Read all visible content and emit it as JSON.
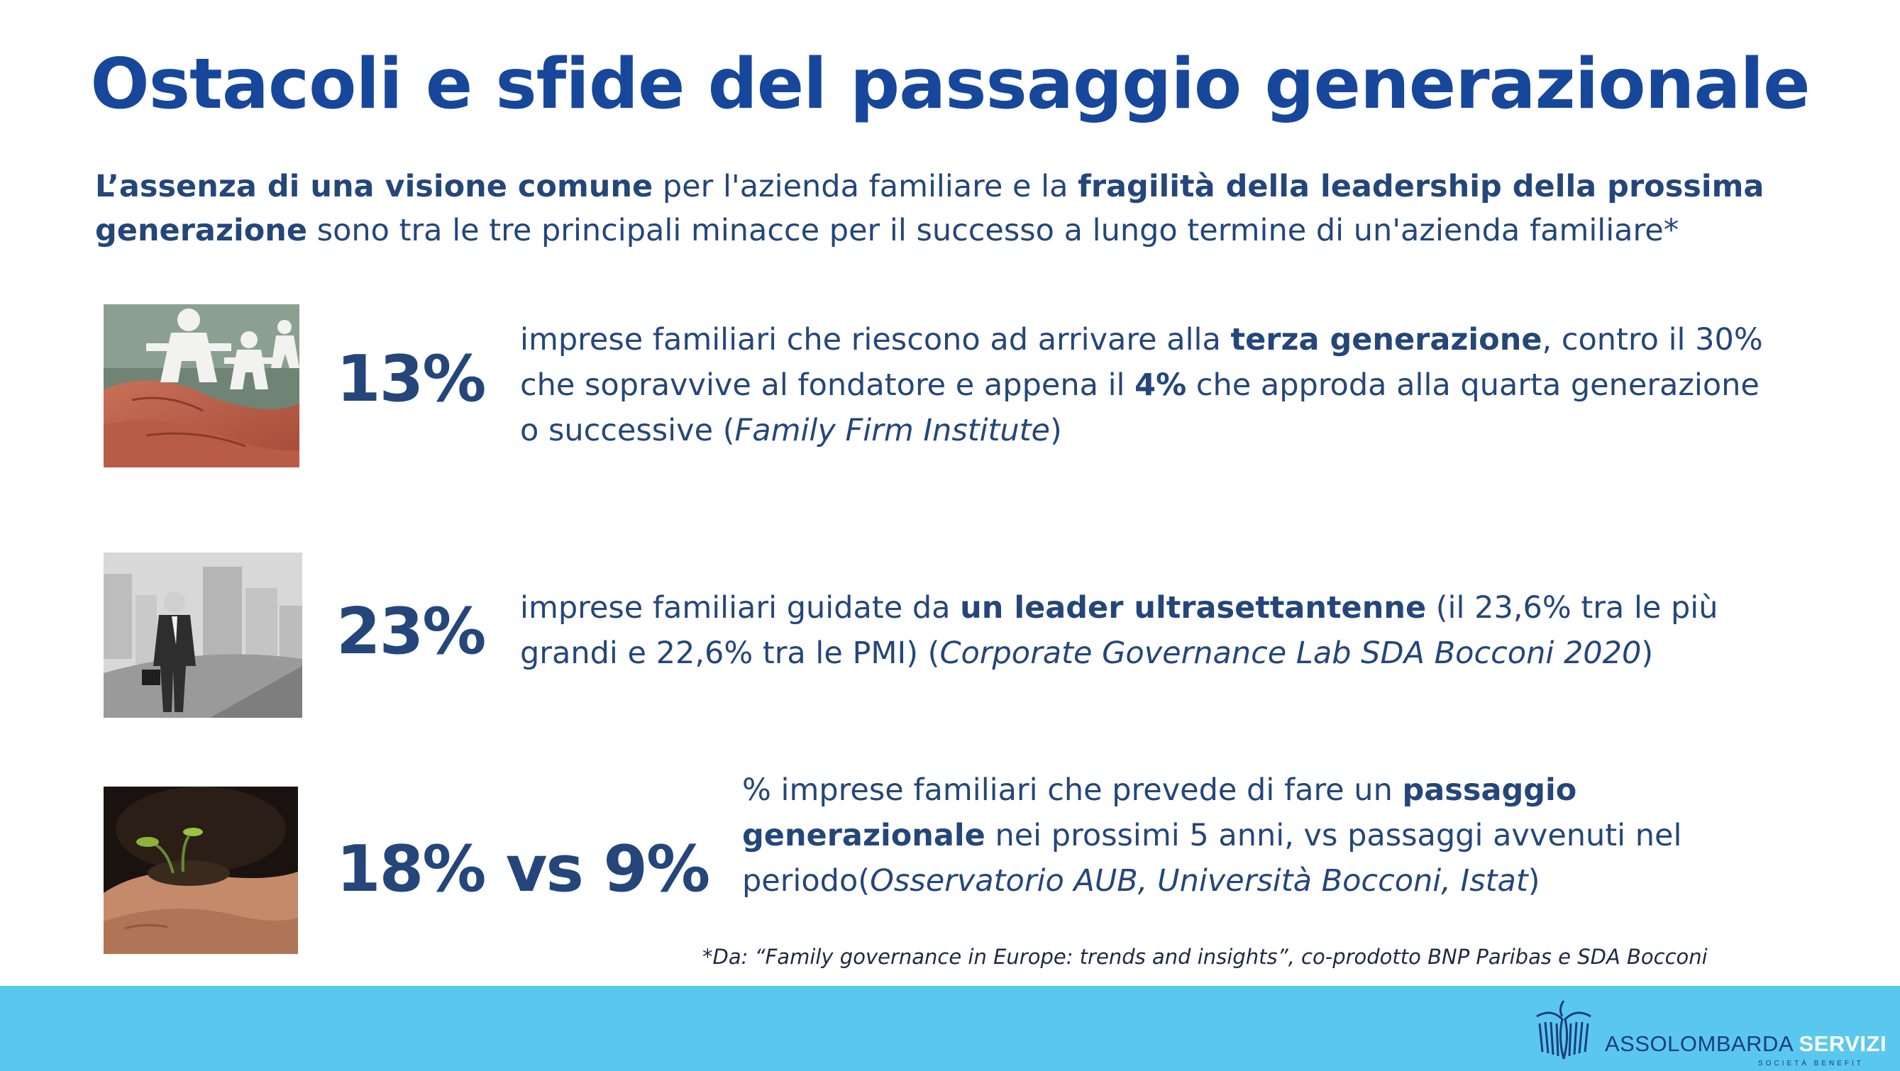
{
  "title": "Ostacoli e sfide del passaggio generazionale",
  "intro": {
    "p1_bold": "L’assenza di una visione comune",
    "p2": " per l'azienda familiare e la ",
    "p3_bold": "fragilità della leadership della prossima generazione",
    "p4": " sono tra le tre principali minacce per il successo a lungo termine di un'azienda familiare*"
  },
  "stats": [
    {
      "value": "13%",
      "image": "paper-family-in-hands-photo",
      "t1": "imprese familiari che riescono ad arrivare alla ",
      "t2_bold": "terza generazione",
      "t3": ", contro il 30% che sopravvive al fondatore e appena il ",
      "t4_bold": "4%",
      "t5": " che approda alla quarta generazione o successive  (",
      "t6_italic": "Family Firm Institute",
      "t7": ")"
    },
    {
      "value": "23%",
      "image": "elderly-businessman-photo",
      "t1": "imprese familiari guidate da ",
      "t2_bold": "un leader ultrasettantenne",
      "t3": " (il 23,6% tra le più grandi e 22,6% tra le PMI) (",
      "t4_italic": "Corporate Governance Lab SDA Bocconi 2020",
      "t5": ")"
    },
    {
      "value": "18% vs 9%",
      "image": "seedling-in-hands-photo",
      "t1": "% imprese familiari che prevede di fare un ",
      "t2_bold": "passaggio generazionale",
      "t3": " nei prossimi 5 anni, vs passaggi avvenuti nel periodo(",
      "t4_italic": "Osservatorio AUB, Università Bocconi, Istat",
      "t5": ")"
    }
  ],
  "footnote": "*Da: “Family governance in Europe: trends and insights”, co-prodotto BNP Paribas e SDA Bocconi",
  "footer": {
    "brand": "ASSOLOMBARDA",
    "brand_strong": "SERVIZI",
    "subtitle": "SOCIETÀ BENEFIT",
    "logo_icon": "eagle-logo-icon",
    "bar_color": "#5ac8ee"
  }
}
